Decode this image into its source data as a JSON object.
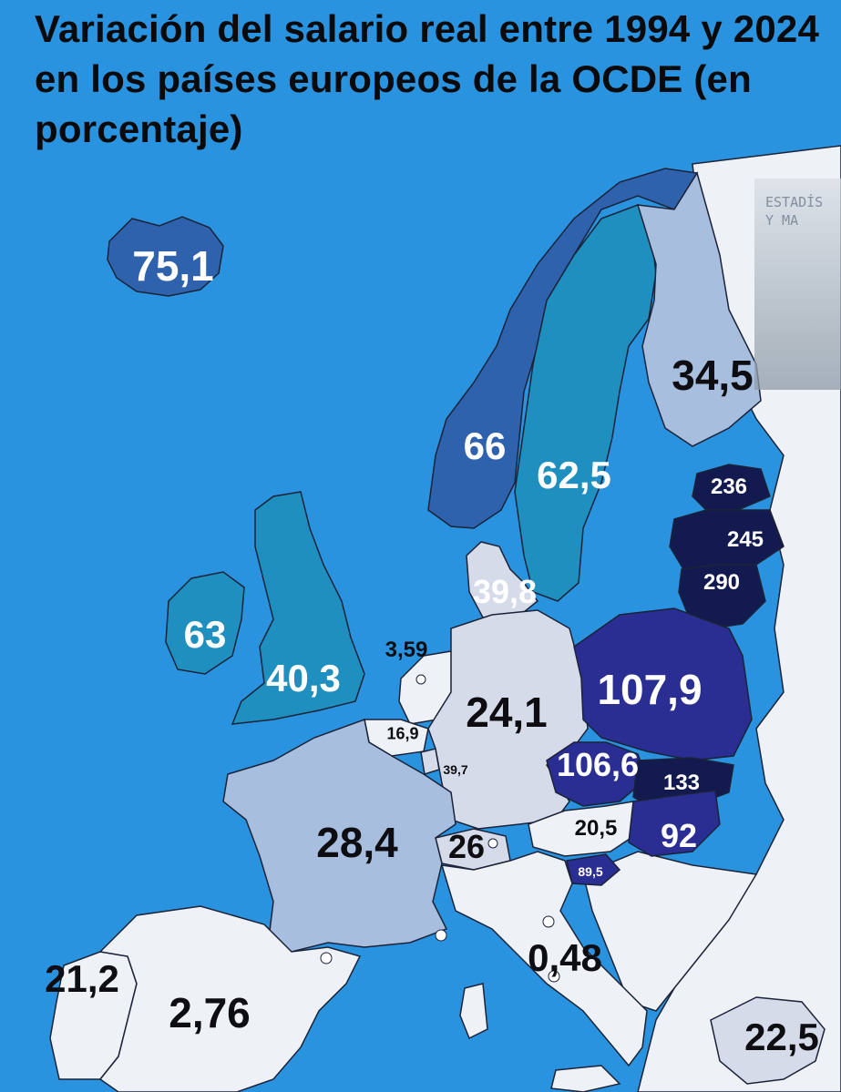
{
  "title": "Variación del salario real entre 1994 y 2024 en los países europeos de la OCDE (en porcentaje)",
  "watermark": {
    "text": "ESTADÍS\nY MA"
  },
  "colors": {
    "sea": "#2a93e0",
    "non_oecd": "#eef1f6",
    "pale": "#d6dbe9",
    "light_blue": "#a8bedf",
    "teal": "#1e8fbe",
    "mid_blue": "#2f62ad",
    "royal": "#2a2d92",
    "navy": "#121a4f",
    "border": "#1b2338"
  },
  "countries": [
    {
      "name": "Islandia",
      "value": "75,1"
    },
    {
      "name": "Noruega",
      "value": "66"
    },
    {
      "name": "Suecia",
      "value": "62,5"
    },
    {
      "name": "Finlandia",
      "value": "34,5"
    },
    {
      "name": "Estonia",
      "value": "236"
    },
    {
      "name": "Letonia",
      "value": "245"
    },
    {
      "name": "Lituania",
      "value": "290"
    },
    {
      "name": "Dinamarca",
      "value": "39,8"
    },
    {
      "name": "Irlanda",
      "value": "63"
    },
    {
      "name": "Reino Unido",
      "value": "40,3"
    },
    {
      "name": "Países Bajos",
      "value": "3,59"
    },
    {
      "name": "Bélgica",
      "value": "16,9"
    },
    {
      "name": "Luxemburgo",
      "value": "39,7"
    },
    {
      "name": "Alemania",
      "value": "24,1"
    },
    {
      "name": "Polonia",
      "value": "107,9"
    },
    {
      "name": "Chequia",
      "value": "106,6"
    },
    {
      "name": "Eslovaquia",
      "value": "133"
    },
    {
      "name": "Austria",
      "value": "20,5"
    },
    {
      "name": "Hungría",
      "value": "92"
    },
    {
      "name": "Eslovenia",
      "value": "89,5"
    },
    {
      "name": "Suiza",
      "value": "26"
    },
    {
      "name": "Francia",
      "value": "28,4"
    },
    {
      "name": "Italia",
      "value": "0,48"
    },
    {
      "name": "Portugal",
      "value": "21,2"
    },
    {
      "name": "España",
      "value": "2,76"
    },
    {
      "name": "Grecia",
      "value": "22,5"
    }
  ]
}
